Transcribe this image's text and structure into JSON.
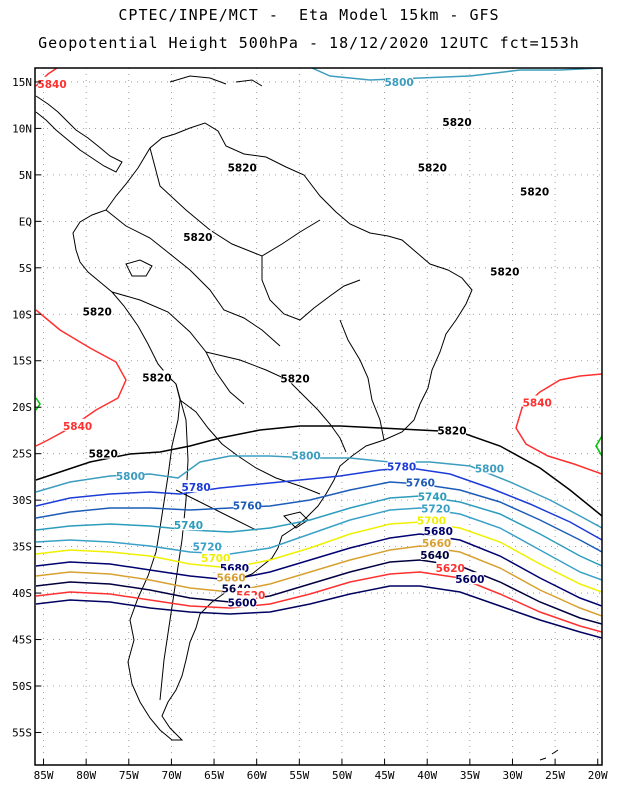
{
  "header": {
    "line1": "CPTEC/INPE/MCT -  Eta Model 15km - GFS",
    "line2": "Geopotential Height 500hPa - 18/12/2020 12UTC fct=153h"
  },
  "axes": {
    "lon_ticks": [
      "85W",
      "80W",
      "75W",
      "70W",
      "65W",
      "60W",
      "55W",
      "50W",
      "45W",
      "40W",
      "35W",
      "30W",
      "25W",
      "20W"
    ],
    "lat_ticks": [
      "15N",
      "10N",
      "5N",
      "EQ",
      "5S",
      "10S",
      "15S",
      "20S",
      "25S",
      "30S",
      "35S",
      "40S",
      "45S",
      "50S",
      "55S"
    ],
    "lon_range": [
      -86,
      -19.5
    ],
    "lat_range": [
      16.5,
      -58.5
    ],
    "grid": "dotted"
  },
  "colors": {
    "c5840": "#ff3030",
    "c5820": "#000000",
    "c5800": "#3c9dbf",
    "c5780": "#1c3cd8",
    "c5760": "#1c5cb8",
    "c5740": "#2c9cbc",
    "c5720": "#3aa0c8",
    "c5700": "#f0f000",
    "c5680": "#000070",
    "c5660": "#d8a030",
    "c5640": "#000040",
    "c5620": "#ff3030",
    "c5600": "#000060",
    "coast": "#000000"
  },
  "contour_labels": [
    {
      "text": "5840",
      "lon": -84.0,
      "lat": 14.8,
      "color": "#ff3030"
    },
    {
      "text": "5800",
      "lon": -43.3,
      "lat": 15.0,
      "color": "#3c9dbf"
    },
    {
      "text": "5820",
      "lon": -36.5,
      "lat": 10.7,
      "color": "#000000"
    },
    {
      "text": "5820",
      "lon": -61.7,
      "lat": 5.8,
      "color": "#000000"
    },
    {
      "text": "5820",
      "lon": -39.4,
      "lat": 5.8,
      "color": "#000000"
    },
    {
      "text": "5820",
      "lon": -27.4,
      "lat": 3.2,
      "color": "#000000"
    },
    {
      "text": "5820",
      "lon": -66.9,
      "lat": -1.7,
      "color": "#000000"
    },
    {
      "text": "5820",
      "lon": -30.9,
      "lat": -5.4,
      "color": "#000000"
    },
    {
      "text": "5820",
      "lon": -78.7,
      "lat": -9.7,
      "color": "#000000"
    },
    {
      "text": "5820",
      "lon": -71.7,
      "lat": -16.8,
      "color": "#000000"
    },
    {
      "text": "5820",
      "lon": -55.5,
      "lat": -16.9,
      "color": "#000000"
    },
    {
      "text": "5840",
      "lon": -81.0,
      "lat": -22.0,
      "color": "#ff3030"
    },
    {
      "text": "5840",
      "lon": -27.1,
      "lat": -19.5,
      "color": "#ff3030"
    },
    {
      "text": "5820",
      "lon": -37.1,
      "lat": -22.5,
      "color": "#000000"
    },
    {
      "text": "5820",
      "lon": -78.0,
      "lat": -25.0,
      "color": "#000000"
    },
    {
      "text": "5800",
      "lon": -54.2,
      "lat": -25.2,
      "color": "#3c9dbf"
    },
    {
      "text": "5800",
      "lon": -74.8,
      "lat": -27.4,
      "color": "#3c9dbf"
    },
    {
      "text": "5800",
      "lon": -32.7,
      "lat": -26.6,
      "color": "#3c9dbf"
    },
    {
      "text": "5780",
      "lon": -43.0,
      "lat": -26.4,
      "color": "#1c3cd8"
    },
    {
      "text": "5780",
      "lon": -67.1,
      "lat": -28.6,
      "color": "#1c3cd8"
    },
    {
      "text": "5760",
      "lon": -40.8,
      "lat": -28.1,
      "color": "#1c5cb8"
    },
    {
      "text": "5760",
      "lon": -61.1,
      "lat": -30.6,
      "color": "#1c5cb8"
    },
    {
      "text": "5740",
      "lon": -39.4,
      "lat": -29.6,
      "color": "#2c9cbc"
    },
    {
      "text": "5720",
      "lon": -39.0,
      "lat": -30.9,
      "color": "#3aa0c8"
    },
    {
      "text": "5740",
      "lon": -68.0,
      "lat": -32.7,
      "color": "#2c9cbc"
    },
    {
      "text": "5700",
      "lon": -39.5,
      "lat": -32.2,
      "color": "#f0f000"
    },
    {
      "text": "5680",
      "lon": -38.7,
      "lat": -33.3,
      "color": "#000070"
    },
    {
      "text": "5720",
      "lon": -65.8,
      "lat": -35.0,
      "color": "#3aa0c8"
    },
    {
      "text": "5660",
      "lon": -38.9,
      "lat": -34.6,
      "color": "#d8a030"
    },
    {
      "text": "5640",
      "lon": -39.1,
      "lat": -35.9,
      "color": "#000040"
    },
    {
      "text": "5700",
      "lon": -64.8,
      "lat": -36.2,
      "color": "#f0f000"
    },
    {
      "text": "5680",
      "lon": -62.6,
      "lat": -37.3,
      "color": "#000070"
    },
    {
      "text": "5620",
      "lon": -37.3,
      "lat": -37.3,
      "color": "#ff3030"
    },
    {
      "text": "5660",
      "lon": -63.0,
      "lat": -38.3,
      "color": "#d8a030"
    },
    {
      "text": "5600",
      "lon": -35.0,
      "lat": -38.5,
      "color": "#000060"
    },
    {
      "text": "5640",
      "lon": -62.4,
      "lat": -39.5,
      "color": "#000040"
    },
    {
      "text": "5620",
      "lon": -60.7,
      "lat": -40.2,
      "color": "#ff3030"
    },
    {
      "text": "5600",
      "lon": -61.7,
      "lat": -41.0,
      "color": "#000060"
    }
  ]
}
